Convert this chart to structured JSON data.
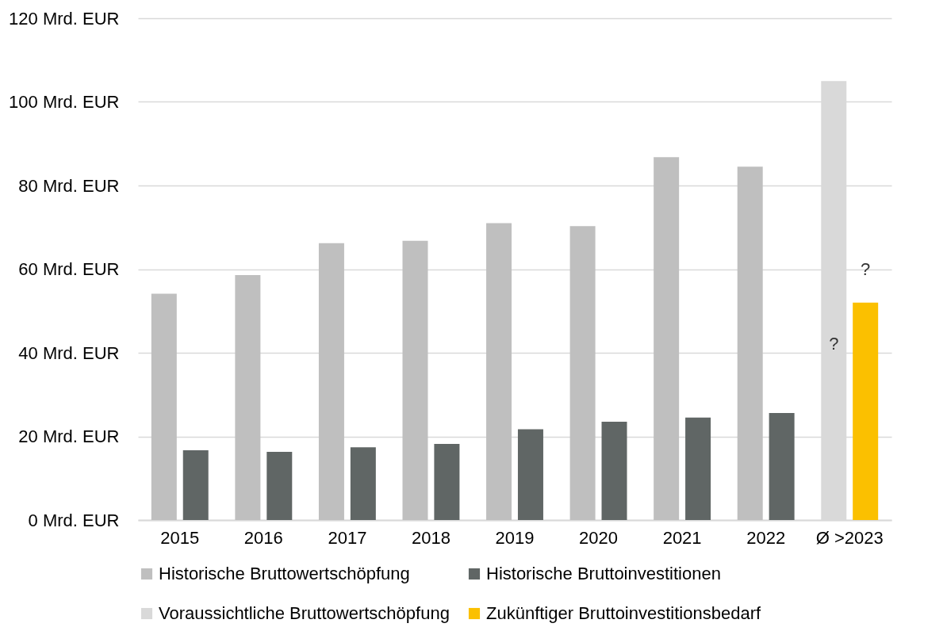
{
  "chart_data": {
    "type": "bar",
    "categories": [
      "2015",
      "2016",
      "2017",
      "2018",
      "2019",
      "2020",
      "2021",
      "2022",
      "Ø >2023"
    ],
    "series": [
      {
        "name": "Historische Bruttowertschöpfung",
        "color": "#bfbfbf",
        "values": [
          54.1,
          58.6,
          66.2,
          66.8,
          71.0,
          70.3,
          86.8,
          84.5,
          null
        ]
      },
      {
        "name": "Historische Bruttoinvestitionen",
        "color": "#606665",
        "values": [
          16.7,
          16.3,
          17.4,
          18.2,
          21.7,
          23.5,
          24.5,
          25.6,
          null
        ]
      },
      {
        "name": "Voraussichtliche Bruttowertschöpfung",
        "color": "#d9d9d9",
        "values": [
          null,
          null,
          null,
          null,
          null,
          null,
          null,
          null,
          105
        ]
      },
      {
        "name": "Zukünftiger Bruttoinvestitionsbedarf",
        "color": "#fbc000",
        "values": [
          null,
          null,
          null,
          null,
          null,
          null,
          null,
          null,
          52
        ]
      }
    ],
    "ylim": [
      0,
      120
    ],
    "yticks": [
      {
        "value": 0,
        "label": "0 Mrd. EUR"
      },
      {
        "value": 20,
        "label": "20 Mrd. EUR"
      },
      {
        "value": 40,
        "label": "40 Mrd. EUR"
      },
      {
        "value": 60,
        "label": "60 Mrd. EUR"
      },
      {
        "value": 80,
        "label": "80 Mrd. EUR"
      },
      {
        "value": 100,
        "label": "100 Mrd. EUR"
      },
      {
        "value": 120,
        "label": "120 Mrd. EUR"
      }
    ],
    "grid": "y",
    "legend": "bottom",
    "annotations": [
      {
        "text": "?",
        "x": "Ø >2023",
        "y": 60
      },
      {
        "text": "?",
        "x": "Ø >2023",
        "y": 42
      }
    ]
  }
}
